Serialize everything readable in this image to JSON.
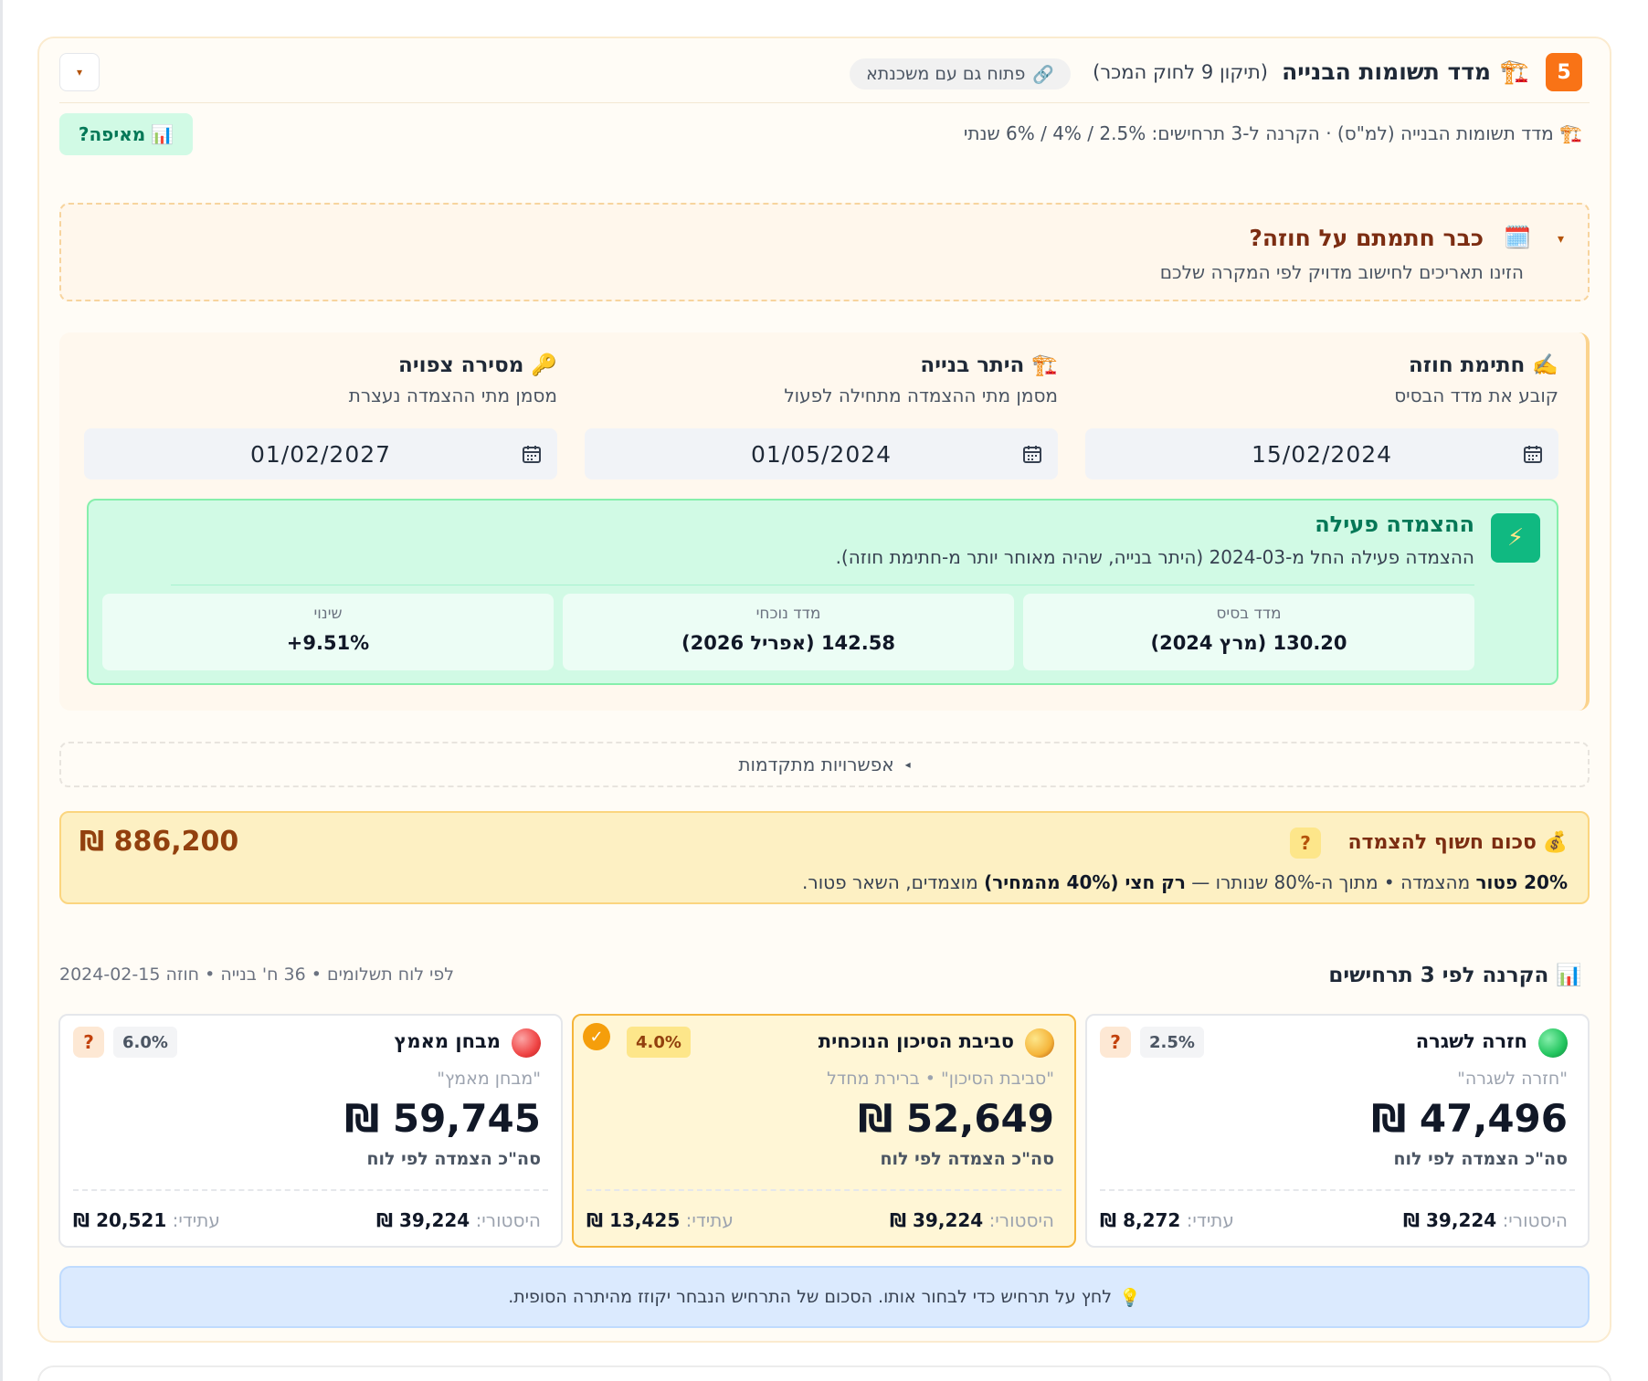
{
  "header": {
    "step_number": "5",
    "title": "מדד תשומות הבנייה",
    "subtitle": "(תיקון 9 לחוק המכר)",
    "open_chip": "פתוח גם עם משכנתא",
    "collapse_glyph": "▾"
  },
  "description": "מדד תשומות הבנייה (למ\"ס) · הקרנה ל-3 תרחישים: 2.5% / 4% / 6% שנתי",
  "where_button": "מאיפה?",
  "signed": {
    "title": "כבר חתמתם על חוזה?",
    "subtitle": "הזינו תאריכים לחישוב מדויק לפי המקרה שלכם",
    "toggle_glyph": "▾"
  },
  "dates": [
    {
      "label": "חתימת חוזה",
      "hint": "קובע את מדד הבסיס",
      "value": "15/02/2024",
      "icon": "✍️"
    },
    {
      "label": "היתר בנייה",
      "hint": "מסמן מתי ההצמדה מתחילה לפעול",
      "value": "01/05/2024",
      "icon": "🏗️"
    },
    {
      "label": "מסירה צפויה",
      "hint": "מסמן מתי ההצמדה נעצרת",
      "value": "01/02/2027",
      "icon": "🔑"
    }
  ],
  "active": {
    "title": "ההצמדה פעילה",
    "subtitle": "ההצמדה פעילה החל מ-2024-03 (היתר בנייה, שהיה מאוחר יותר מ-חתימת חוזה).",
    "stats": [
      {
        "label": "מדד בסיס",
        "value": "130.20 (מרץ 2024)"
      },
      {
        "label": "מדד נוכחי",
        "value": "142.58 (אפריל 2026)"
      },
      {
        "label": "שינוי",
        "value": "+9.51%"
      }
    ]
  },
  "advanced": {
    "label": "אפשרויות מתקדמות",
    "glyph": "◂"
  },
  "exposure": {
    "title": "סכום חשוף להצמדה",
    "help": "?",
    "amount": "886,200 ₪",
    "detail_exempt": "20% פטור",
    "detail_mid": " מהצמדה • מתוך ה-80% שנותרו — ",
    "detail_half": "רק חצי (40% מהמחיר)",
    "detail_end": " מוצמדים, השאר פטור."
  },
  "projection": {
    "title": "הקרנה לפי 3 תרחישים",
    "meta": "לפי לוח תשלומים • 36 ח' בנייה • חוזה 2024-02-15"
  },
  "scenarios": [
    {
      "name": "חזרה לשגרה",
      "rate": "2.5%",
      "quote": "\"חזרה לשגרה\"",
      "amount": "47,496 ₪",
      "total_label": "סה\"כ הצמדה לפי לוח",
      "hist_label": "היסטורי:",
      "hist": "39,224 ₪",
      "fut_label": "עתידי:",
      "fut": "8,272 ₪",
      "color": "#22c55e",
      "selected": false
    },
    {
      "name": "סביבת הסיכון הנוכחית",
      "rate": "4.0%",
      "quote": "\"סביבת הסיכון\" • ברירת מחדל",
      "amount": "52,649 ₪",
      "total_label": "סה\"כ הצמדה לפי לוח",
      "hist_label": "היסטורי:",
      "hist": "39,224 ₪",
      "fut_label": "עתידי:",
      "fut": "13,425 ₪",
      "color": "#f59e0b",
      "selected": true
    },
    {
      "name": "מבחן מאמץ",
      "rate": "6.0%",
      "quote": "\"מבחן מאמץ\"",
      "amount": "59,745 ₪",
      "total_label": "סה\"כ הצמדה לפי לוח",
      "hist_label": "היסטורי:",
      "hist": "39,224 ₪",
      "fut_label": "עתידי:",
      "fut": "20,521 ₪",
      "color": "#ef4444",
      "selected": false
    }
  ],
  "hint": "לחץ על תרחיש כדי לבחור אותו. הסכום של התרחיש הנבחר יקוזז מהיתרה הסופית.",
  "help_glyph": "?",
  "check_glyph": "✓"
}
